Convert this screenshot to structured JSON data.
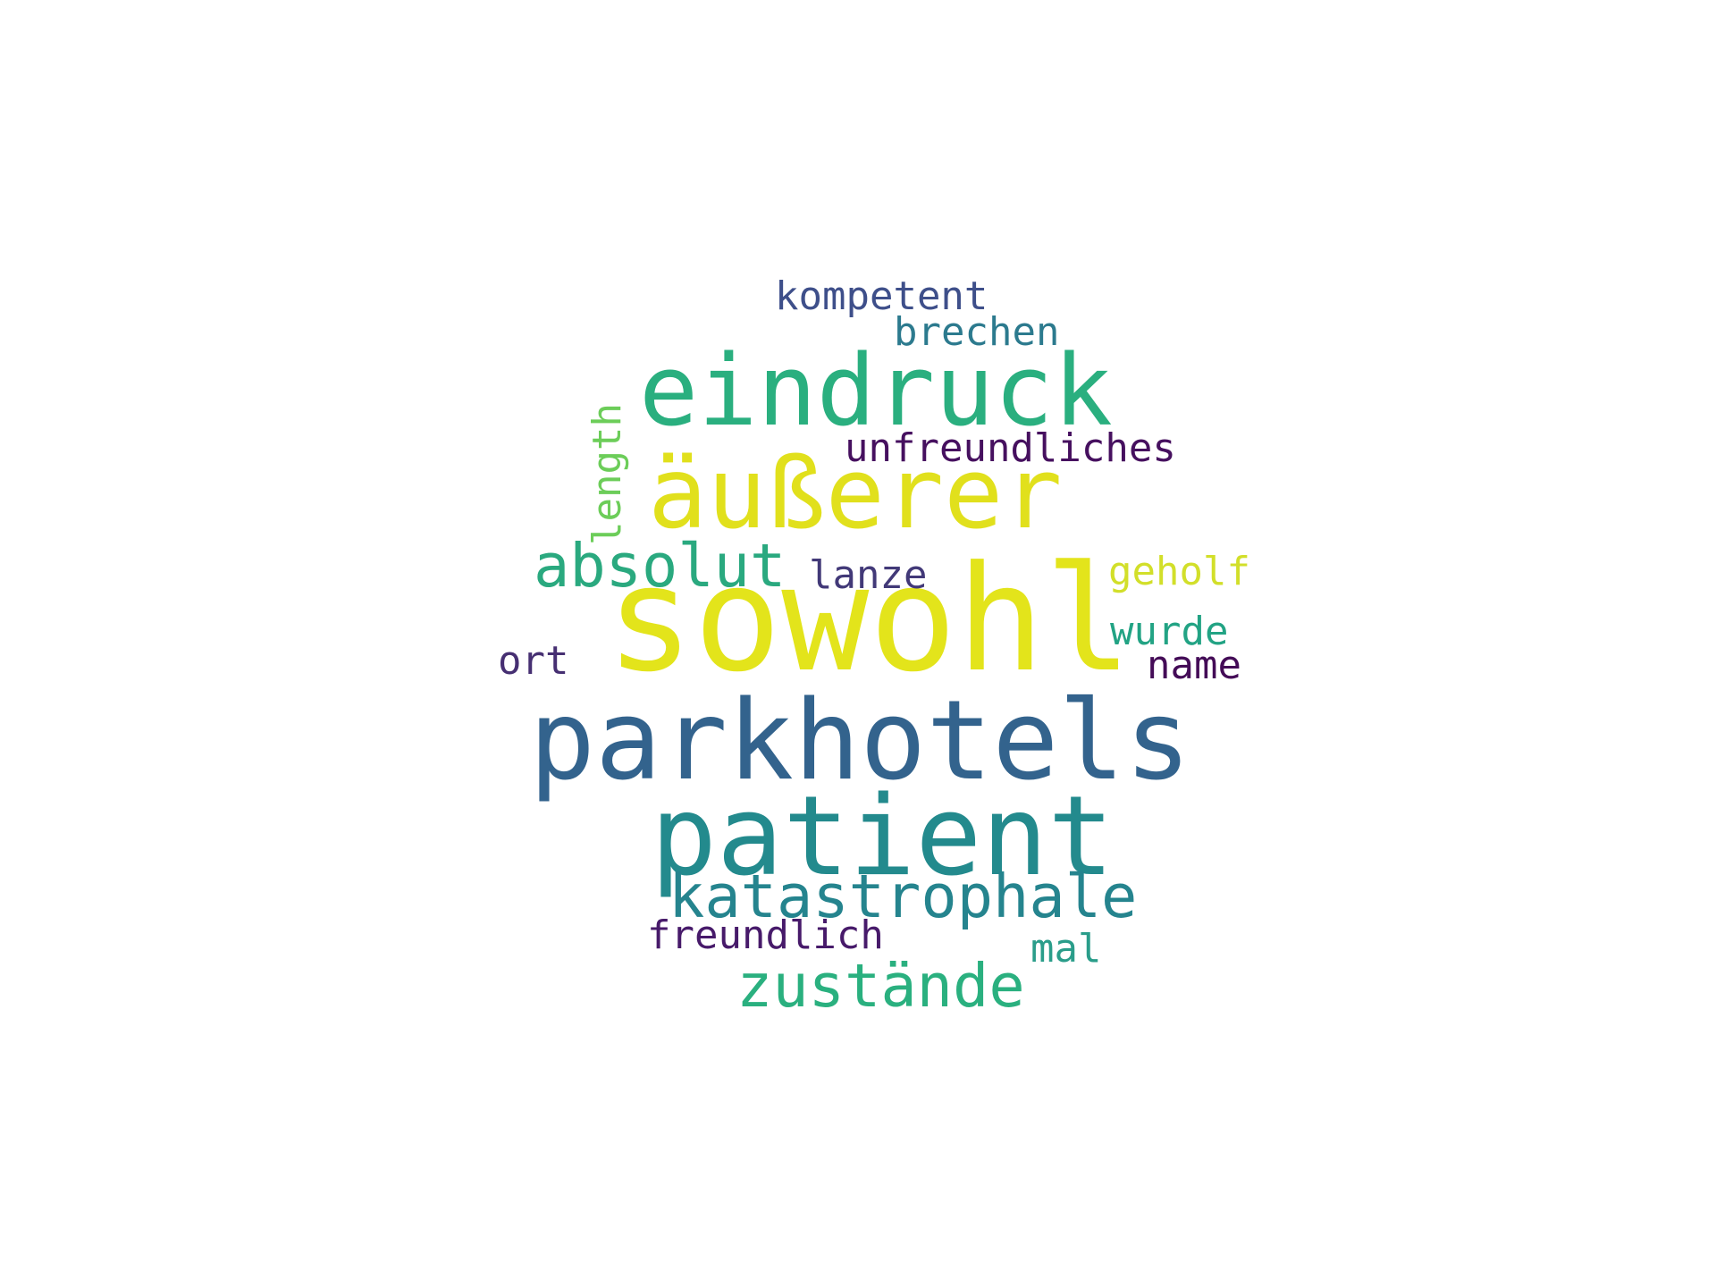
{
  "wordcloud": {
    "background": "#ffffff",
    "words": {
      "sowohl": {
        "text": "sowohl",
        "color": "#e3e41b"
      },
      "parkhotels": {
        "text": "parkhotels",
        "color": "#33638d"
      },
      "patient": {
        "text": "patient",
        "color": "#238a8d"
      },
      "aeusserer": {
        "text": "äußerer",
        "color": "#e1e01c"
      },
      "eindruck": {
        "text": "eindruck",
        "color": "#2aaf7f"
      },
      "katastrophale": {
        "text": "katastrophale",
        "color": "#25848e"
      },
      "zustaende": {
        "text": "zustände",
        "color": "#2ab07f"
      },
      "absolut": {
        "text": "absolut",
        "color": "#2aa97f"
      },
      "unfreundliches": {
        "text": "unfreundliches",
        "color": "#46105f"
      },
      "kompetent": {
        "text": "kompetent",
        "color": "#3e4f8a"
      },
      "brechen": {
        "text": "brechen",
        "color": "#2c7a8e"
      },
      "freundlich": {
        "text": "freundlich",
        "color": "#471a6a"
      },
      "lanze": {
        "text": "lanze",
        "color": "#423978"
      },
      "geholf": {
        "text": "geholf",
        "color": "#d2df2a"
      },
      "wurde": {
        "text": "wurde",
        "color": "#22a384"
      },
      "name": {
        "text": "name",
        "color": "#440c57"
      },
      "ort": {
        "text": "ort",
        "color": "#462f72"
      },
      "mal": {
        "text": "mal",
        "color": "#2a9d8a"
      },
      "length": {
        "text": "length",
        "color": "#6ccd59"
      }
    }
  }
}
